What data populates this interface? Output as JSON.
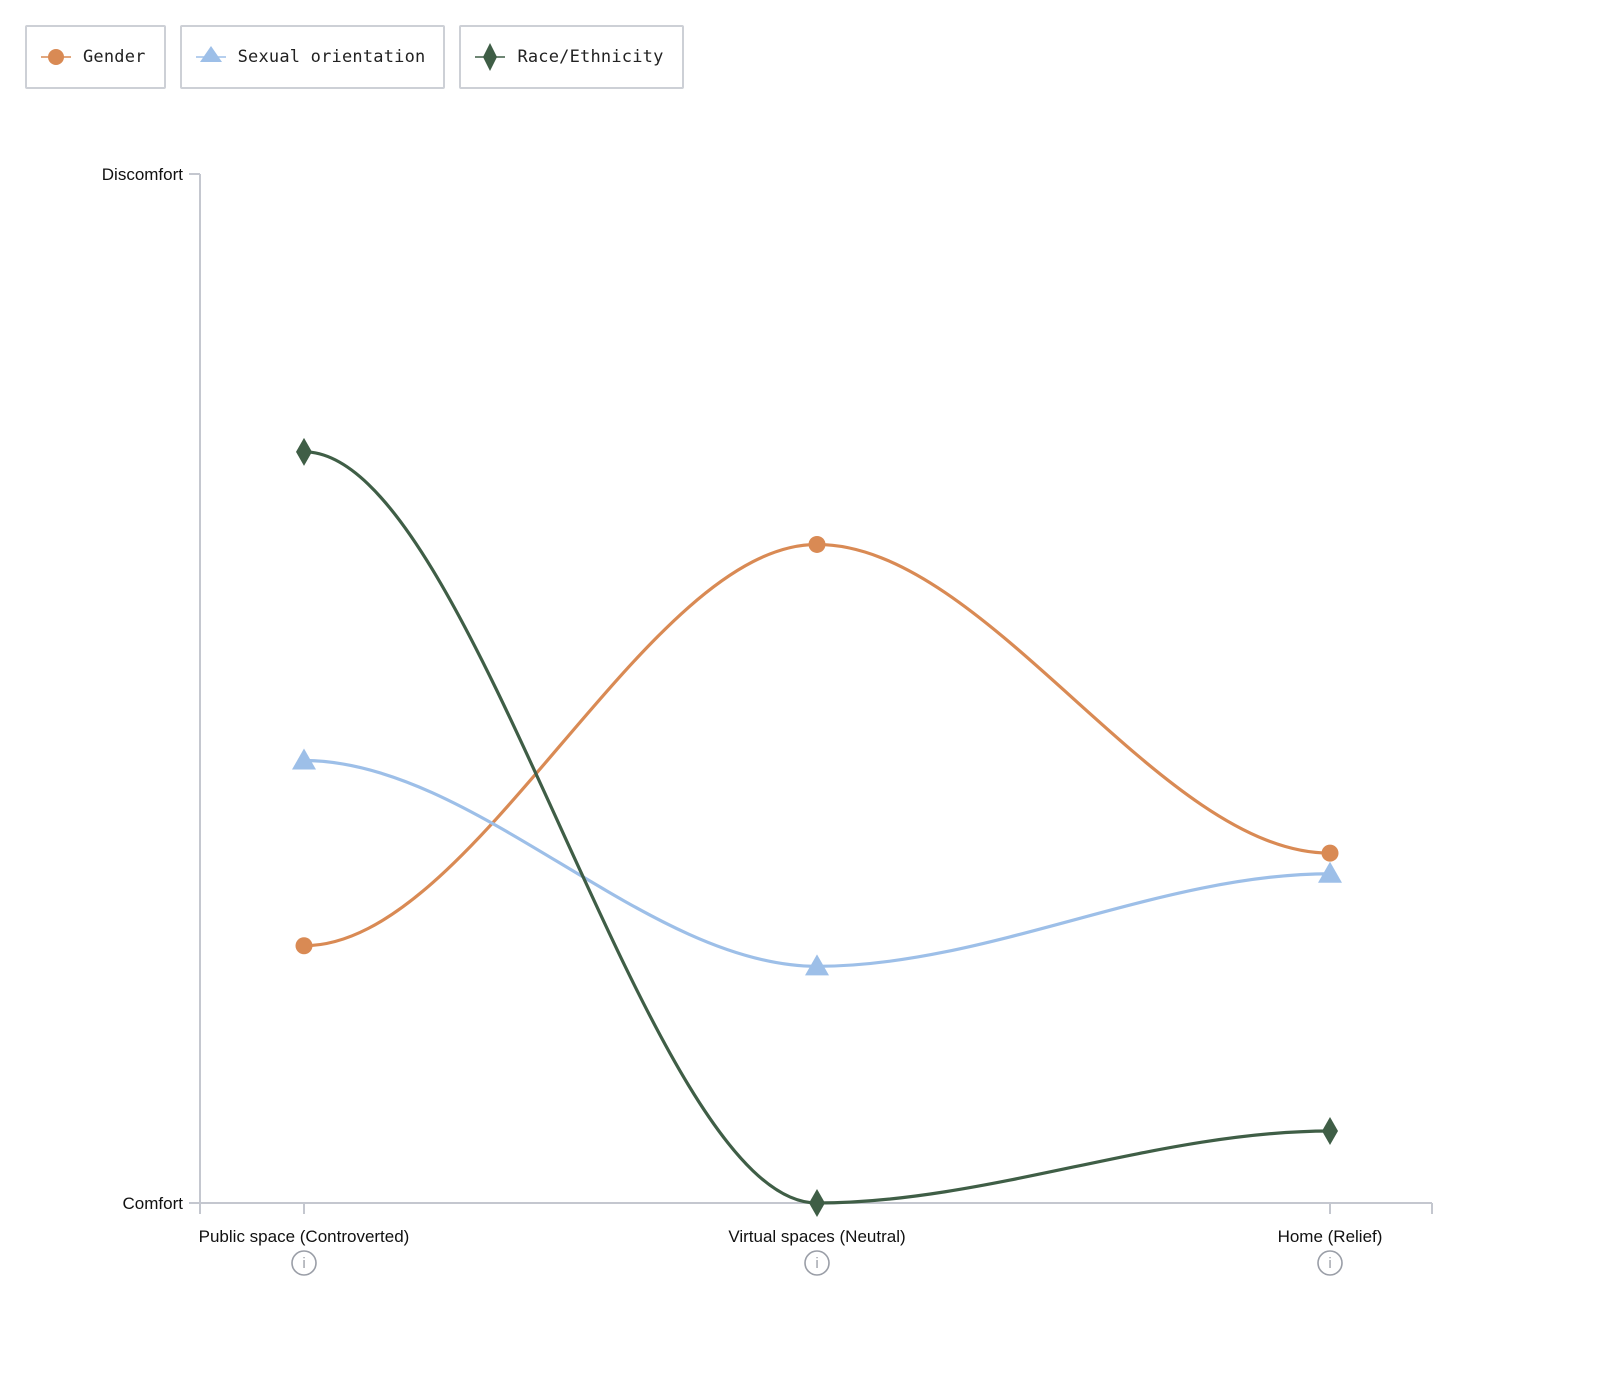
{
  "colors": {
    "gender": "#d98a54",
    "sexual_orientation": "#9dbfe8",
    "race_ethnicity": "#3f5e46",
    "axis": "#c4c7cf",
    "info_icon": "#9a9ea7"
  },
  "icons": {
    "gender": "circle-marker-icon",
    "sexual_orientation": "triangle-marker-icon",
    "race_ethnicity": "diamond-marker-icon",
    "info": "info-icon"
  },
  "legend": {
    "items": [
      {
        "key": "gender",
        "label": "Gender"
      },
      {
        "key": "sexual_orientation",
        "label": "Sexual orientation"
      },
      {
        "key": "race_ethnicity",
        "label": "Race/Ethnicity"
      }
    ]
  },
  "info_glyph": "i",
  "chart_data": {
    "type": "line",
    "title": "",
    "xlabel": "",
    "ylabel": "",
    "categories": [
      "Public space (Controverted)",
      "Virtual spaces (Neutral)",
      "Home (Relief)"
    ],
    "y_tick_labels": [
      {
        "value": 0,
        "label": "Comfort"
      },
      {
        "value": 1,
        "label": "Discomfort"
      }
    ],
    "ylim": [
      0,
      1
    ],
    "grid": false,
    "legend_position": "top-left",
    "curve": "smooth",
    "series": [
      {
        "key": "gender",
        "name": "Gender",
        "marker": "circle",
        "values": [
          0.25,
          0.64,
          0.34
        ]
      },
      {
        "key": "sexual_orientation",
        "name": "Sexual orientation",
        "marker": "triangle",
        "values": [
          0.43,
          0.23,
          0.32
        ]
      },
      {
        "key": "race_ethnicity",
        "name": "Race/Ethnicity",
        "marker": "diamond",
        "values": [
          0.73,
          0.0,
          0.07
        ]
      }
    ]
  }
}
